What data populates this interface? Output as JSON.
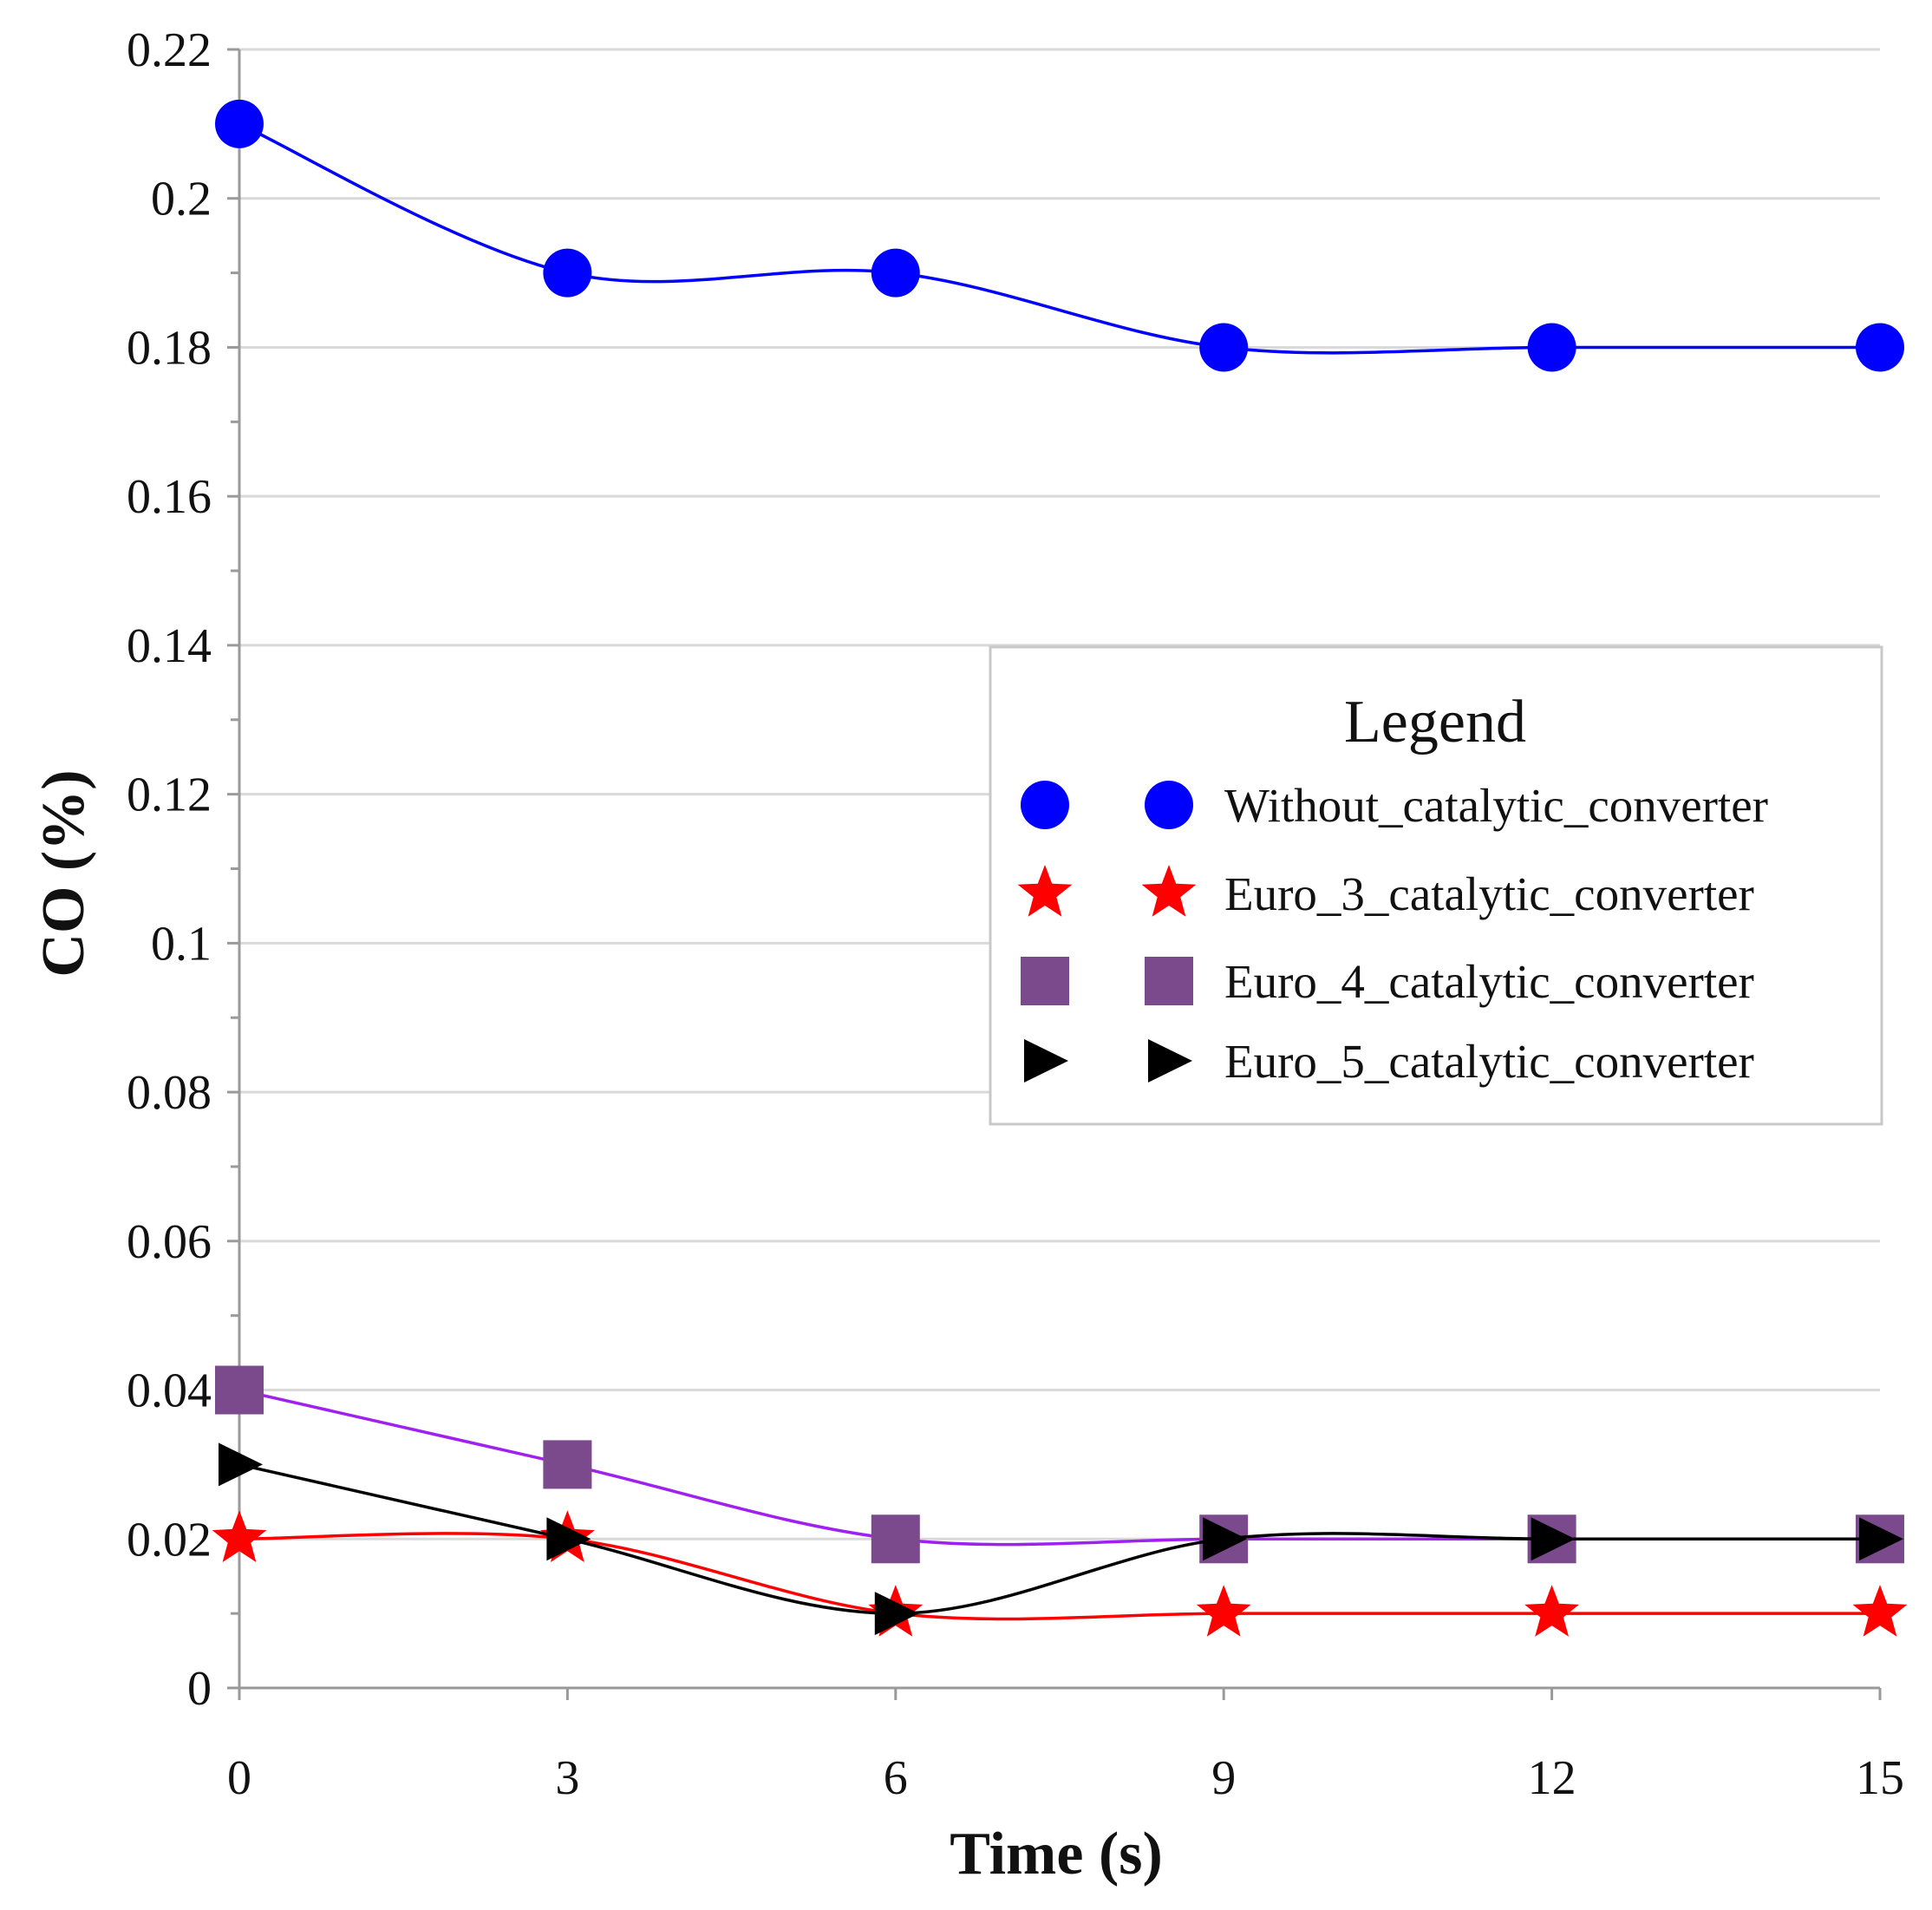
{
  "chart_data": {
    "type": "line",
    "title": "",
    "xlabel": "Time (s)",
    "ylabel": "CO (%)",
    "x": [
      0,
      3,
      6,
      9,
      12,
      15
    ],
    "xlim": [
      0,
      15
    ],
    "ylim": [
      0,
      0.22
    ],
    "x_ticks": [
      "0",
      "3",
      "6",
      "9",
      "12",
      "15"
    ],
    "y_ticks": [
      "0",
      "0.02",
      "0.04",
      "0.06",
      "0.08",
      "0.1",
      "0.12",
      "0.14",
      "0.16",
      "0.18",
      "0.2",
      "0.22"
    ],
    "grid": true,
    "legend": {
      "title": "Legend",
      "position": "center-right"
    },
    "series": [
      {
        "name": "Without_catalytic_converter",
        "marker": "circle",
        "line_color": "#0000ff",
        "marker_color": "#0000ff",
        "values": [
          0.21,
          0.19,
          0.19,
          0.18,
          0.18,
          0.18
        ]
      },
      {
        "name": "Euro_3_catalytic_converter",
        "marker": "star",
        "line_color": "#ff0000",
        "marker_color": "#ff0000",
        "values": [
          0.02,
          0.02,
          0.01,
          0.01,
          0.01,
          0.01
        ]
      },
      {
        "name": "Euro_4_catalytic_converter",
        "marker": "square",
        "line_color": "#a020f0",
        "marker_color": "#7b4a8c",
        "values": [
          0.04,
          0.03,
          0.02,
          0.02,
          0.02,
          0.02
        ]
      },
      {
        "name": "Euro_5_catalytic_converter",
        "marker": "triangle-right",
        "line_color": "#000000",
        "marker_color": "#000000",
        "values": [
          0.03,
          0.02,
          0.01,
          0.02,
          0.02,
          0.02
        ]
      }
    ]
  }
}
